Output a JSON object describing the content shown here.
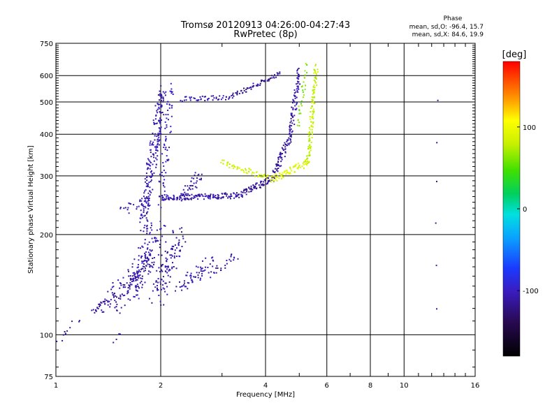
{
  "chart_data": {
    "type": "scatter",
    "title": "Tromsø 20120913 04:26:00-04:27:43",
    "subtitle": "RwPretec (8p)",
    "xlabel": "Frequency [MHz]",
    "ylabel": "Stationary phase Virtual Height [km]",
    "xscale": "log",
    "yscale": "log",
    "xlim": [
      1,
      16
    ],
    "ylim": [
      75,
      750
    ],
    "xticks": [
      1,
      2,
      4,
      6,
      8,
      10,
      16
    ],
    "yticks": [
      75,
      100,
      200,
      300,
      400,
      500,
      600,
      750
    ],
    "grid": true,
    "stats": {
      "heading": "Phase",
      "line_o": "mean, sd,O: -96.4, 15.7",
      "line_x": "mean, sd,X:  84.6, 19.9"
    },
    "colorbar": {
      "label": "[deg]",
      "range": [
        -180,
        180
      ],
      "ticks": [
        100,
        0,
        -100
      ],
      "tick_labels": [
        "100",
        "0",
        "-100"
      ]
    },
    "trace_segments": [
      {
        "phase": -110,
        "x0": 1.0,
        "x1": 1.16,
        "y0": 95,
        "y1": 110,
        "n": 12,
        "spread": 0.04
      },
      {
        "phase": -105,
        "x0": 1.45,
        "x1": 1.55,
        "y0": 97,
        "y1": 102,
        "n": 5,
        "spread": 0.03
      },
      {
        "phase": -112,
        "x0": 1.28,
        "x1": 1.42,
        "y0": 118,
        "y1": 126,
        "n": 30,
        "spread": 0.03
      },
      {
        "phase": -110,
        "x0": 1.42,
        "x1": 1.85,
        "y0": 122,
        "y1": 165,
        "n": 110,
        "spread": 0.1
      },
      {
        "phase": -108,
        "x0": 1.65,
        "x1": 1.98,
        "y0": 135,
        "y1": 210,
        "n": 120,
        "spread": 0.1
      },
      {
        "phase": -110,
        "x0": 1.95,
        "x1": 2.25,
        "y0": 130,
        "y1": 200,
        "n": 110,
        "spread": 0.1
      },
      {
        "phase": -106,
        "x0": 2.25,
        "x1": 2.8,
        "y0": 140,
        "y1": 165,
        "n": 60,
        "spread": 0.06
      },
      {
        "phase": -112,
        "x0": 2.8,
        "x1": 3.3,
        "y0": 150,
        "y1": 175,
        "n": 25,
        "spread": 0.04
      },
      {
        "phase": -108,
        "x0": 1.55,
        "x1": 1.8,
        "y0": 235,
        "y1": 255,
        "n": 20,
        "spread": 0.04
      },
      {
        "phase": -105,
        "x0": 1.78,
        "x1": 2.02,
        "y0": 210,
        "y1": 540,
        "n": 220,
        "spread": 0.06
      },
      {
        "phase": -100,
        "x0": 2.0,
        "x1": 2.15,
        "y0": 250,
        "y1": 560,
        "n": 70,
        "spread": 0.05
      },
      {
        "phase": -110,
        "x0": 2.0,
        "x1": 3.4,
        "y0": 258,
        "y1": 262,
        "n": 140,
        "spread": 0.025
      },
      {
        "phase": -115,
        "x0": 3.4,
        "x1": 4.2,
        "y0": 265,
        "y1": 295,
        "n": 70,
        "spread": 0.025
      },
      {
        "phase": -108,
        "x0": 2.3,
        "x1": 2.6,
        "y0": 260,
        "y1": 300,
        "n": 40,
        "spread": 0.05
      },
      {
        "phase": -112,
        "x0": 4.2,
        "x1": 4.7,
        "y0": 300,
        "y1": 390,
        "n": 70,
        "spread": 0.03
      },
      {
        "phase": -110,
        "x0": 4.7,
        "x1": 5.0,
        "y0": 390,
        "y1": 620,
        "n": 80,
        "spread": 0.03
      },
      {
        "phase": -108,
        "x0": 2.3,
        "x1": 3.2,
        "y0": 510,
        "y1": 515,
        "n": 45,
        "spread": 0.02
      },
      {
        "phase": -115,
        "x0": 3.2,
        "x1": 4.4,
        "y0": 520,
        "y1": 610,
        "n": 60,
        "spread": 0.02
      },
      {
        "phase": 85,
        "x0": 3.0,
        "x1": 4.2,
        "y0": 330,
        "y1": 292,
        "n": 60,
        "spread": 0.025
      },
      {
        "phase": 90,
        "x0": 4.2,
        "x1": 5.3,
        "y0": 292,
        "y1": 330,
        "n": 70,
        "spread": 0.03
      },
      {
        "phase": 80,
        "x0": 5.3,
        "x1": 5.6,
        "y0": 330,
        "y1": 640,
        "n": 110,
        "spread": 0.025
      },
      {
        "phase": 60,
        "x0": 4.95,
        "x1": 5.25,
        "y0": 420,
        "y1": 640,
        "n": 30,
        "spread": 0.03
      },
      {
        "phase": -110,
        "x0": 12.3,
        "x1": 12.5,
        "y0": 120,
        "y1": 510,
        "n": 6,
        "spread": 0.02
      }
    ]
  }
}
